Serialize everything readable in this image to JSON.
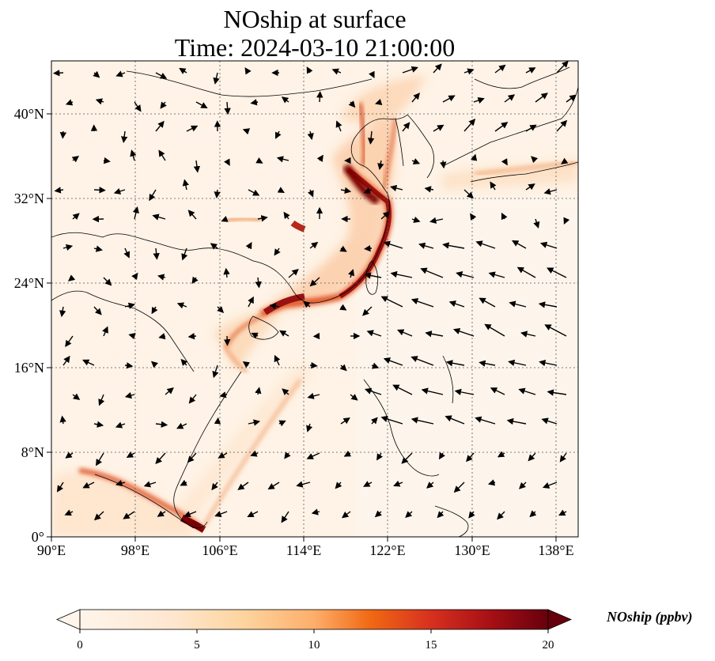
{
  "title": {
    "line1": "NOship at surface",
    "line2": "Time: 2024-03-10 21:00:00"
  },
  "map": {
    "lon_range": [
      90,
      139
    ],
    "lat_range": [
      0,
      45
    ],
    "lon_ticks": [
      "90°E",
      "98°E",
      "106°E",
      "114°E",
      "122°E",
      "130°E",
      "138°E"
    ],
    "lat_ticks": [
      "0°",
      "8°N",
      "16°N",
      "24°N",
      "32°N",
      "40°N"
    ],
    "gridlines": true,
    "field_name": "NOship",
    "units": "ppbv",
    "vectors": "surface wind arrows"
  },
  "colorbar": {
    "label": "NOship (ppbv)",
    "ticks": [
      "0",
      "5",
      "10",
      "15",
      "20"
    ],
    "min": 0,
    "max": 20,
    "extend": "both",
    "colormap": [
      "#fff5eb",
      "#fdd49e",
      "#fdae6b",
      "#f16913",
      "#d94801",
      "#a50f15",
      "#67000d"
    ]
  },
  "shipping_lanes": [
    {
      "name": "north-china-coast",
      "color": "#8b0000"
    },
    {
      "name": "south-china-coast",
      "color": "#c0311b"
    },
    {
      "name": "malacca-strait",
      "color": "#7f0000"
    }
  ]
}
